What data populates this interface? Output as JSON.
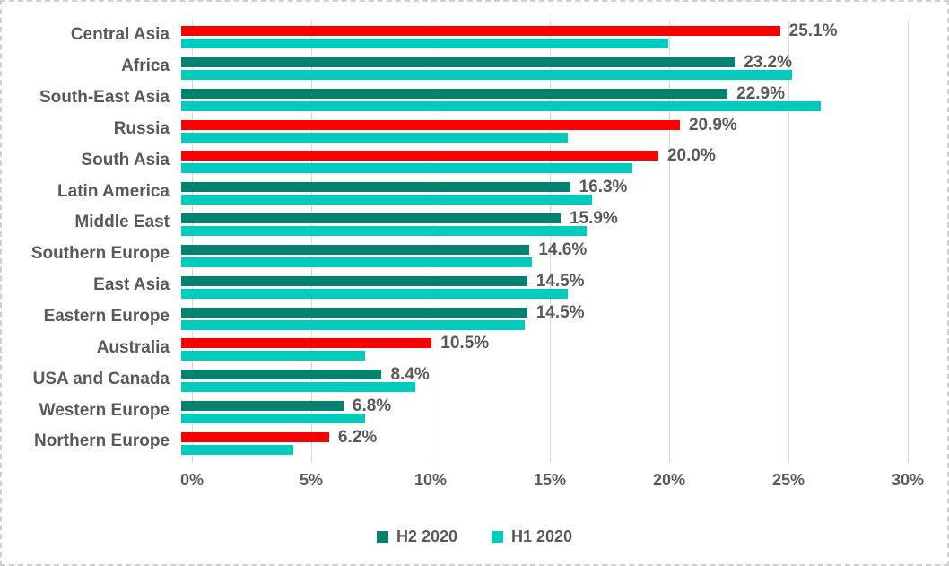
{
  "chart_data": {
    "type": "bar",
    "orientation": "horizontal",
    "title": "",
    "xlabel": "",
    "ylabel": "",
    "xlim": [
      0,
      30
    ],
    "x_ticks": [
      "0%",
      "5%",
      "10%",
      "15%",
      "20%",
      "25%",
      "30%"
    ],
    "x_tick_values": [
      0,
      5,
      10,
      15,
      20,
      25,
      30
    ],
    "grid": "vertical",
    "legend_position": "bottom",
    "categories": [
      "Central Asia",
      "Africa",
      "South-East Asia",
      "Russia",
      "South Asia",
      "Latin America",
      "Middle East",
      "Southern Europe",
      "East Asia",
      "Eastern Europe",
      "Australia",
      "USA and Canada",
      "Western Europe",
      "Northern Europe"
    ],
    "series": [
      {
        "name": "H2 2020",
        "color": "#038270",
        "highlight_color": "#fa0000",
        "values": [
          25.1,
          23.2,
          22.9,
          20.9,
          20.0,
          16.3,
          15.9,
          14.6,
          14.5,
          14.5,
          10.5,
          8.4,
          6.8,
          6.2
        ],
        "point_highlighted": [
          true,
          false,
          false,
          true,
          true,
          false,
          false,
          false,
          false,
          false,
          true,
          false,
          false,
          true
        ],
        "data_labels": [
          "25.1%",
          "23.2%",
          "22.9%",
          "20.9%",
          "20.0%",
          "16.3%",
          "15.9%",
          "14.6%",
          "14.5%",
          "14.5%",
          "10.5%",
          "8.4%",
          "6.8%",
          "6.2%"
        ]
      },
      {
        "name": "H1 2020",
        "color": "#00ccbe",
        "values": [
          20.4,
          25.6,
          26.8,
          16.2,
          18.9,
          17.2,
          17.0,
          14.7,
          16.2,
          14.4,
          7.7,
          9.8,
          7.7,
          4.7
        ],
        "data_labels": []
      }
    ]
  },
  "legend": {
    "items": [
      {
        "label": "H2 2020",
        "color": "#038270"
      },
      {
        "label": "H1 2020",
        "color": "#00ccbe"
      }
    ]
  },
  "colors": {
    "h2_default": "#038270",
    "h2_highlight": "#fa0000",
    "h1": "#00ccbe",
    "text": "#595959",
    "gridline": "#d9d9d9",
    "frame_border": "#cfcfcf",
    "background": "#ffffff"
  }
}
